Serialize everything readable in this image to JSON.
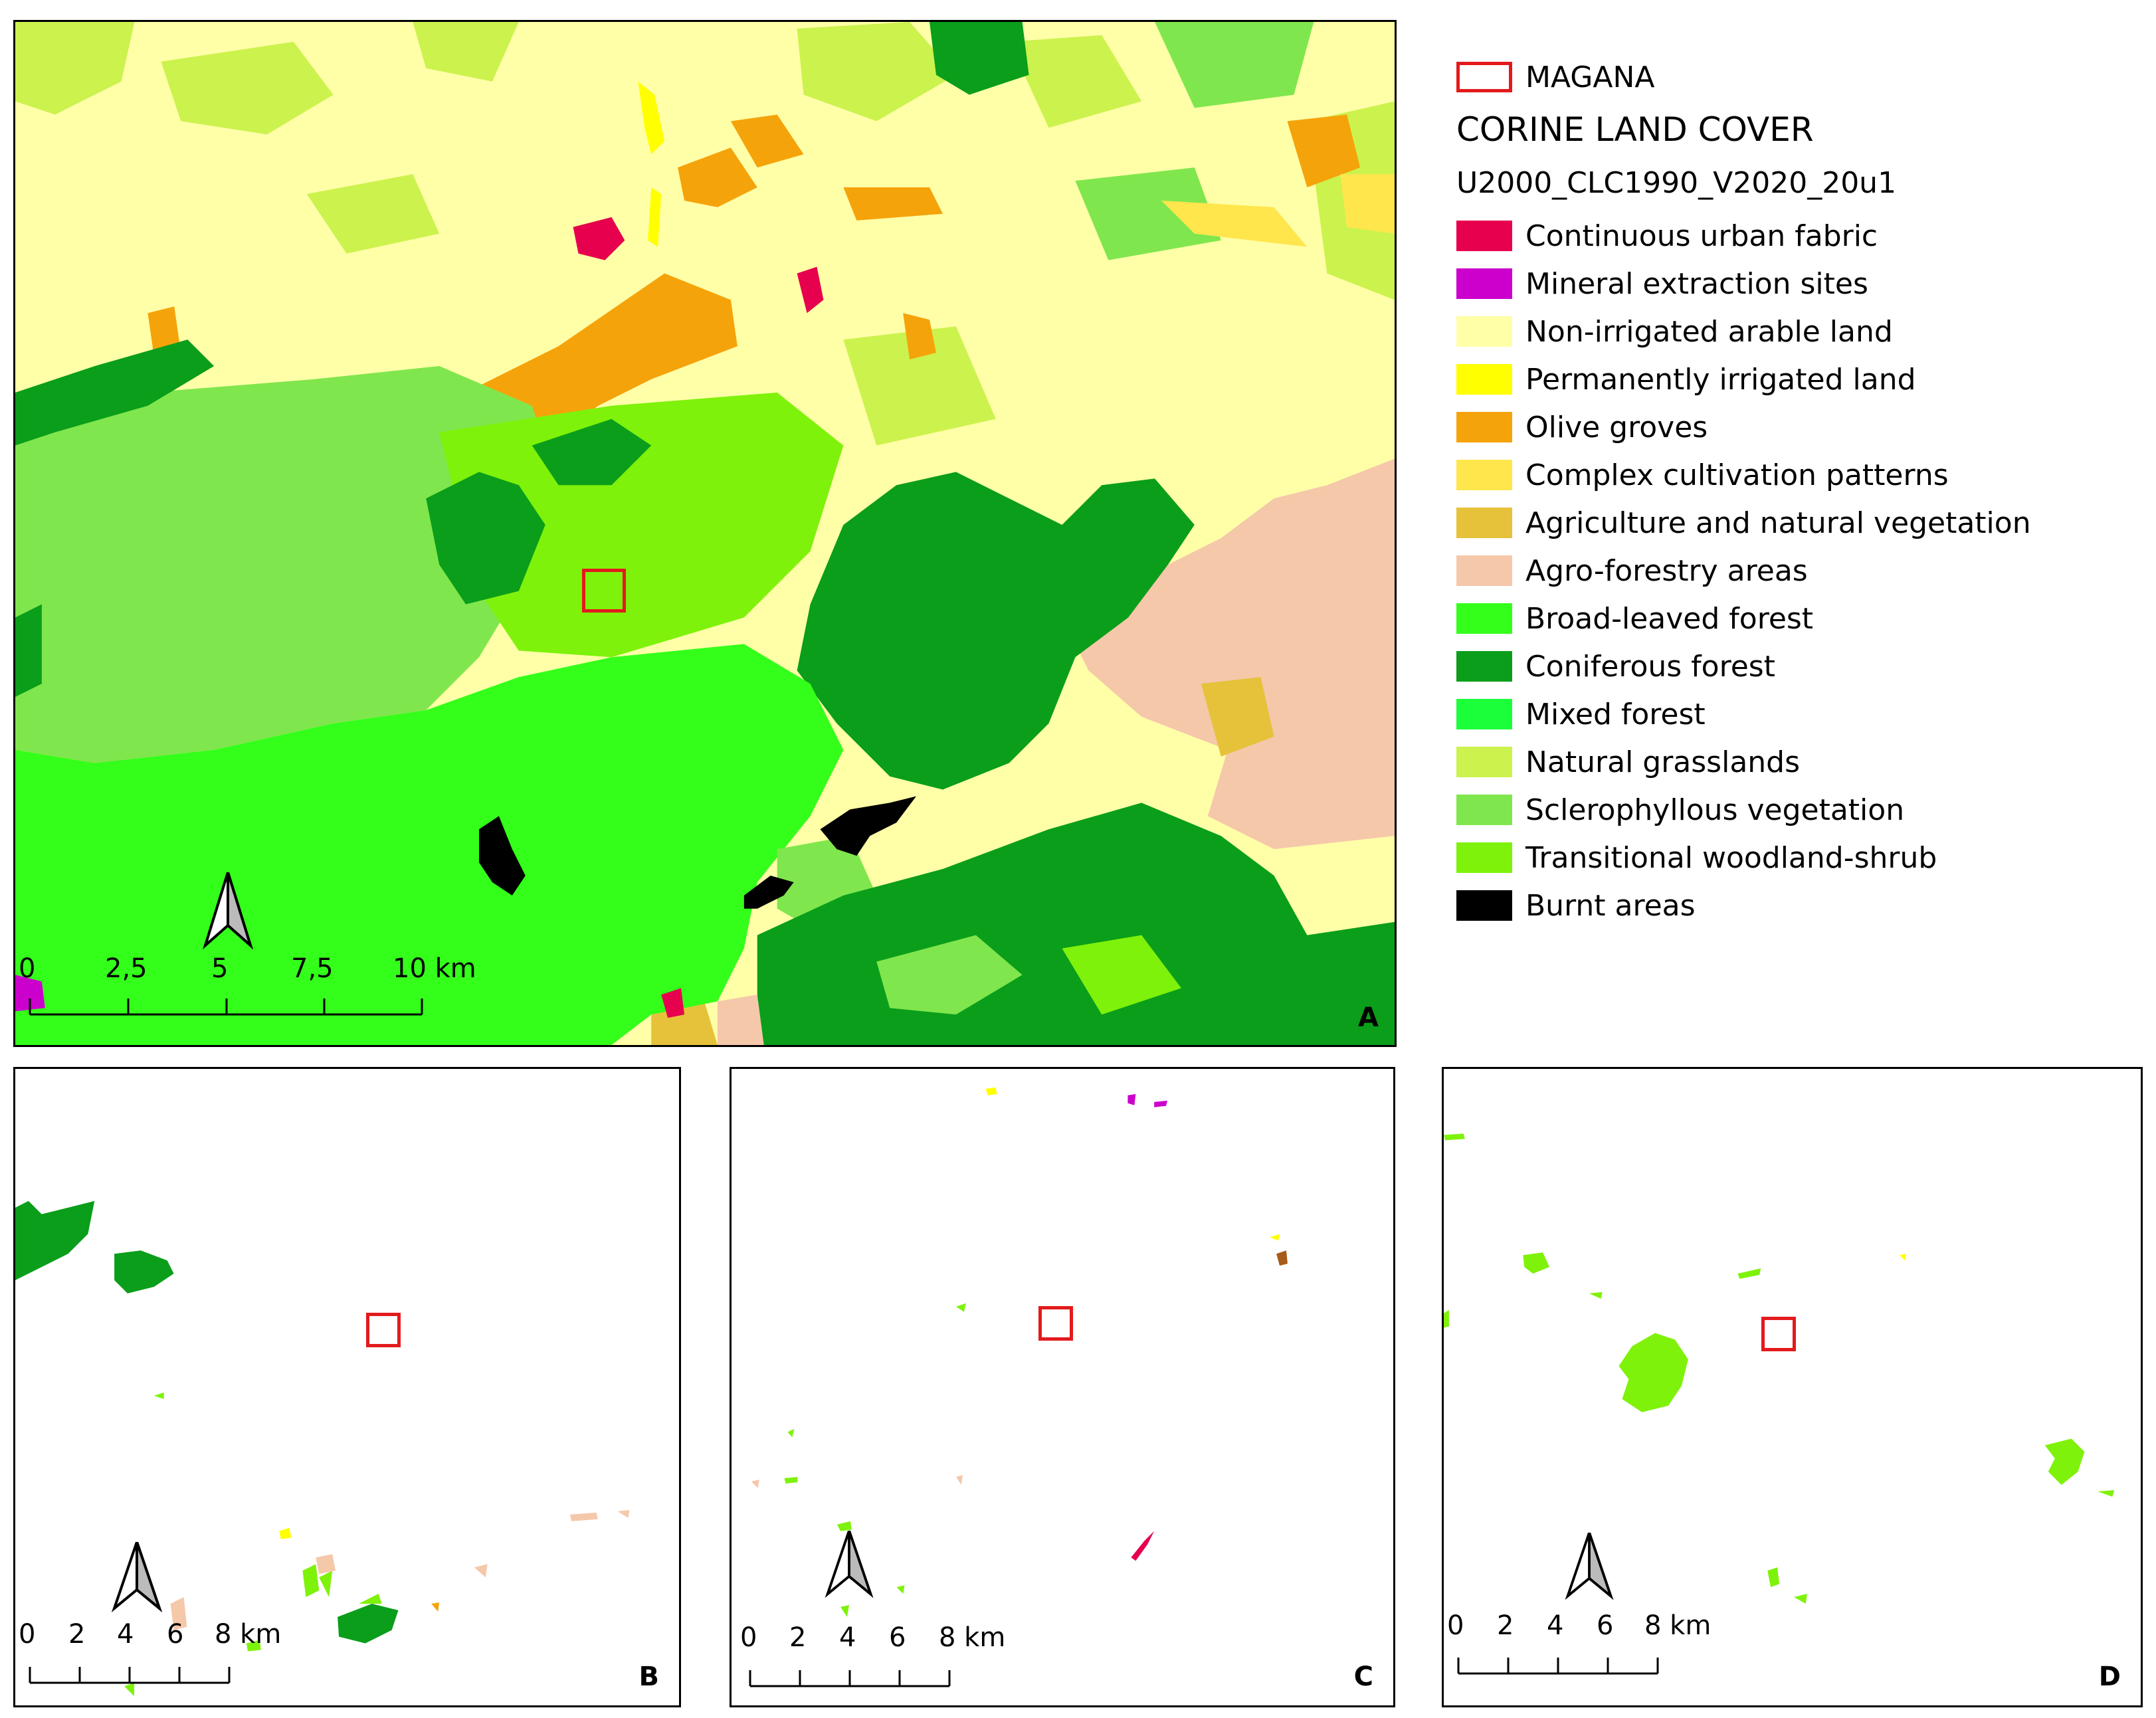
{
  "legend": {
    "study_area_label": "MAGANA",
    "title": "CORINE LAND COVER",
    "subtitle": "U2000_CLC1990_V2020_20u1",
    "classes": [
      {
        "label": "Continuous urban fabric",
        "color": "#e6004d"
      },
      {
        "label": "Mineral extraction sites",
        "color": "#cc00cc"
      },
      {
        "label": "Non-irrigated arable land",
        "color": "#ffffa8"
      },
      {
        "label": "Permanently irrigated land",
        "color": "#ffff00"
      },
      {
        "label": "Olive groves",
        "color": "#f5a30a"
      },
      {
        "label": "Complex cultivation patterns",
        "color": "#ffe64d"
      },
      {
        "label": "Agriculture and natural vegetation",
        "color": "#e6c23b"
      },
      {
        "label": "Agro-forestry areas",
        "color": "#f5c8aa"
      },
      {
        "label": "Broad-leaved forest",
        "color": "#33ff1a"
      },
      {
        "label": "Coniferous forest",
        "color": "#0a9e1a"
      },
      {
        "label": "Mixed forest",
        "color": "#1aff3a"
      },
      {
        "label": "Natural grasslands",
        "color": "#ccf24d"
      },
      {
        "label": "Sclerophyllous vegetation",
        "color": "#80e64d"
      },
      {
        "label": "Transitional woodland-shrub",
        "color": "#7ef20a"
      },
      {
        "label": "Burnt areas",
        "color": "#000000"
      }
    ]
  },
  "panels": {
    "a": {
      "letter": "A",
      "scale_ticks": [
        "0",
        "2,5",
        "5",
        "7,5",
        "10 km"
      ]
    },
    "b": {
      "letter": "B",
      "scale_ticks": [
        "0",
        "2",
        "4",
        "6",
        "8 km"
      ]
    },
    "c": {
      "letter": "C",
      "scale_ticks": [
        "0",
        "2",
        "4",
        "6",
        "8 km"
      ]
    },
    "d": {
      "letter": "D",
      "scale_ticks": [
        "0",
        "2",
        "4",
        "6",
        "8 km"
      ]
    }
  },
  "colors": {
    "study_area_outline": "#e31a1c"
  }
}
